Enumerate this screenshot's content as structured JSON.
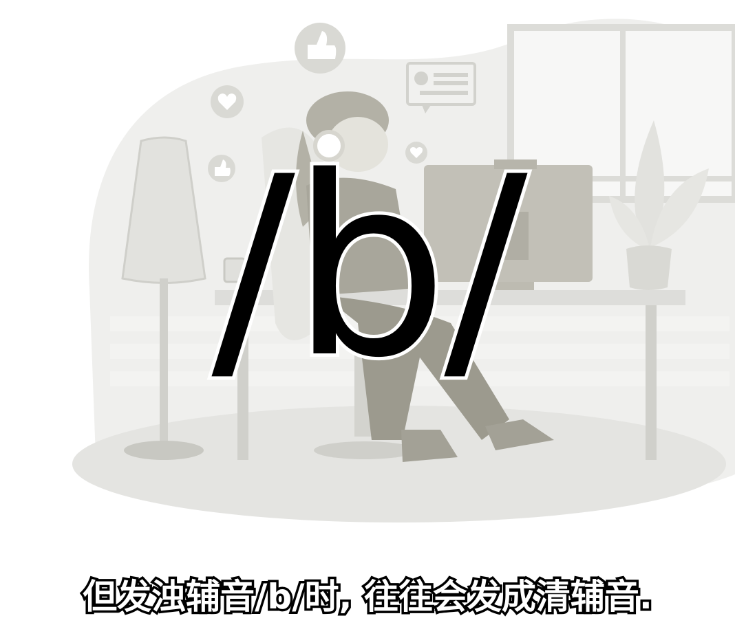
{
  "video_frame": {
    "phoneme_label": "/b/",
    "subtitle": "但发浊辅音/b/时, 往往会发成清辅音."
  },
  "illustration": {
    "description_icons": [
      "thumbs-up-icon",
      "heart-icon",
      "chat-bubble-icon",
      "desk-lamp-icon",
      "plant-icon"
    ],
    "palette": {
      "background": "#ffffff",
      "light_gray": "#e8e8e6",
      "mid_gray": "#d2d2cd",
      "dark_gray": "#a9a99f",
      "figure": "#9c9a8e"
    }
  }
}
